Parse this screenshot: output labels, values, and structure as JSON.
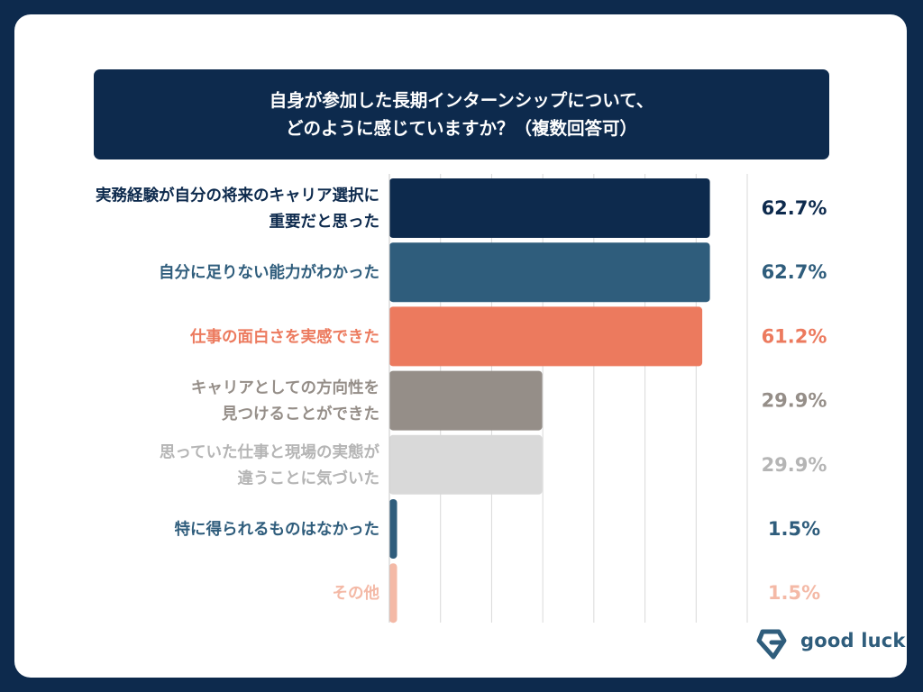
{
  "header": {
    "title_line1": "自身が参加した長期インターンシップについて、",
    "title_line2": "どのように感じていますか？（複数回答可）"
  },
  "brand": {
    "name": "good luck"
  },
  "colors": {
    "background": "#0d2a4d",
    "card": "#ffffff",
    "grid": "#d9d9d9"
  },
  "chart_data": {
    "type": "bar",
    "orientation": "horizontal",
    "title": "自身が参加した長期インターンシップについて、どのように感じていますか？（複数回答可）",
    "unit": "%",
    "xlim": [
      0,
      70
    ],
    "grid": true,
    "categories": [
      [
        "実務経験が自分の将来のキャリア選択に",
        "重要だと思った"
      ],
      [
        "自分に足りない能力がわかった"
      ],
      [
        "仕事の面白さを実感できた"
      ],
      [
        "キャリアとしての方向性を",
        "見つけることができた"
      ],
      [
        "思っていた仕事と現場の実態が",
        "違うことに気づいた"
      ],
      [
        "特に得られるものはなかった"
      ],
      [
        "その他"
      ]
    ],
    "values": [
      62.7,
      62.7,
      61.2,
      29.9,
      29.9,
      1.5,
      1.5
    ],
    "value_labels": [
      "62.7%",
      "62.7%",
      "61.2%",
      "29.9%",
      "29.9%",
      "1.5%",
      "1.5%"
    ],
    "bar_colors": [
      "#0d2a4d",
      "#2f5d7c",
      "#ec7a5e",
      "#958e88",
      "#d9d9d9",
      "#2f5d7c",
      "#f4b9a6"
    ],
    "label_colors": [
      "#0d2a4d",
      "#2f5d7c",
      "#ec7a5e",
      "#958e88",
      "#b5b5b5",
      "#2f5d7c",
      "#f4b9a6"
    ]
  }
}
